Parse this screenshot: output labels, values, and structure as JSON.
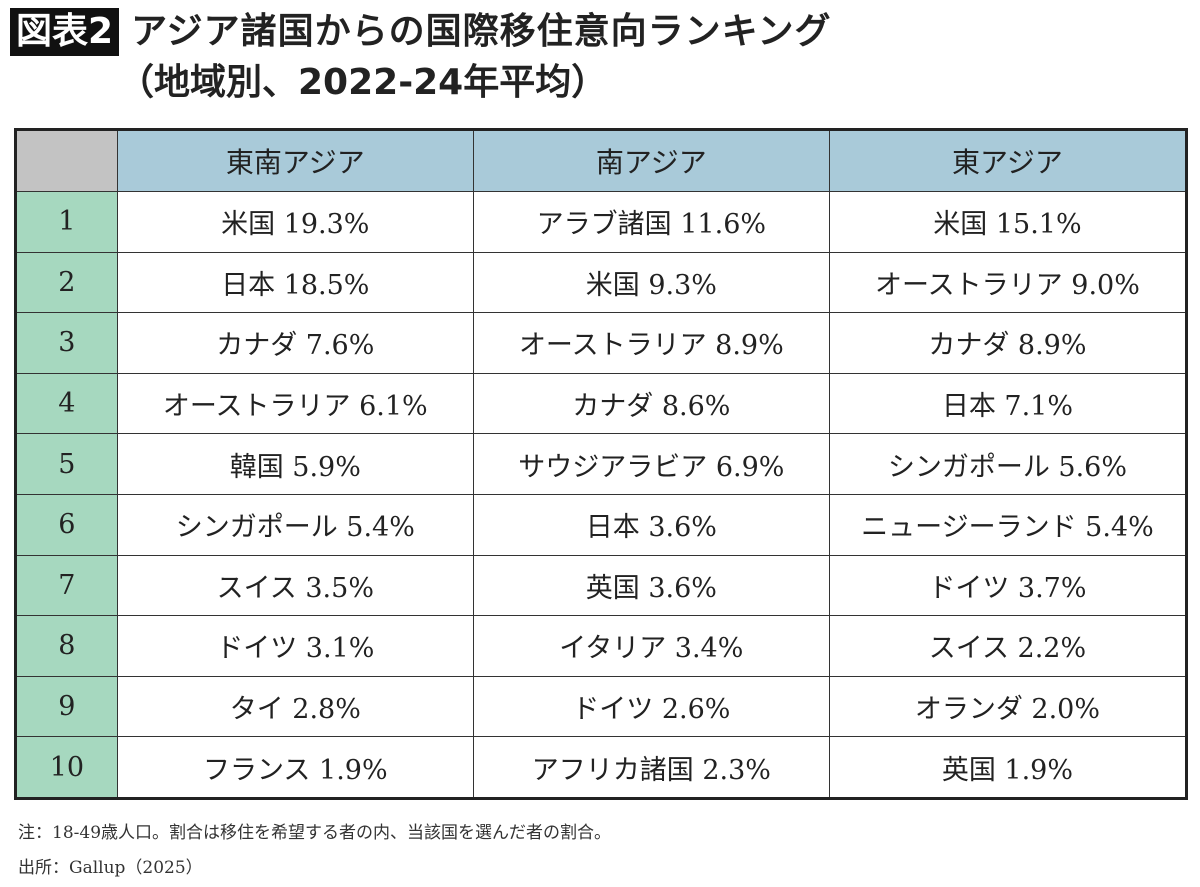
{
  "header": {
    "badge": "図表2",
    "title": "アジア諸国からの国際移住意向ランキング",
    "subtitle": "（地域別、2022-24年平均）"
  },
  "chart_data": {
    "type": "table",
    "columns": [
      "",
      "東南アジア",
      "南アジア",
      "東アジア"
    ],
    "rows": [
      {
        "rank": "1",
        "cells": [
          "米国 19.3%",
          "アラブ諸国 11.6%",
          "米国 15.1%"
        ]
      },
      {
        "rank": "2",
        "cells": [
          "日本 18.5%",
          "米国 9.3%",
          "オーストラリア 9.0%"
        ]
      },
      {
        "rank": "3",
        "cells": [
          "カナダ 7.6%",
          "オーストラリア 8.9%",
          "カナダ 8.9%"
        ]
      },
      {
        "rank": "4",
        "cells": [
          "オーストラリア 6.1%",
          "カナダ 8.6%",
          "日本 7.1%"
        ]
      },
      {
        "rank": "5",
        "cells": [
          "韓国 5.9%",
          "サウジアラビア 6.9%",
          "シンガポール 5.6%"
        ]
      },
      {
        "rank": "6",
        "cells": [
          "シンガポール 5.4%",
          "日本 3.6%",
          "ニュージーランド 5.4%"
        ]
      },
      {
        "rank": "7",
        "cells": [
          "スイス 3.5%",
          "英国 3.6%",
          "ドイツ 3.7%"
        ]
      },
      {
        "rank": "8",
        "cells": [
          "ドイツ 3.1%",
          "イタリア 3.4%",
          "スイス 2.2%"
        ]
      },
      {
        "rank": "9",
        "cells": [
          "タイ 2.8%",
          "ドイツ 2.6%",
          "オランダ 2.0%"
        ]
      },
      {
        "rank": "10",
        "cells": [
          "フランス 1.9%",
          "アフリカ諸国 2.3%",
          "英国 1.9%"
        ]
      }
    ],
    "colors": {
      "header": "#a9cad9",
      "rank_column": "#a6d8bf",
      "corner": "#c3c3c3"
    }
  },
  "footer": {
    "note": "注：18-49歳人口。割合は移住を希望する者の内、当該国を選んだ者の割合。",
    "source": "出所：Gallup（2025）"
  }
}
